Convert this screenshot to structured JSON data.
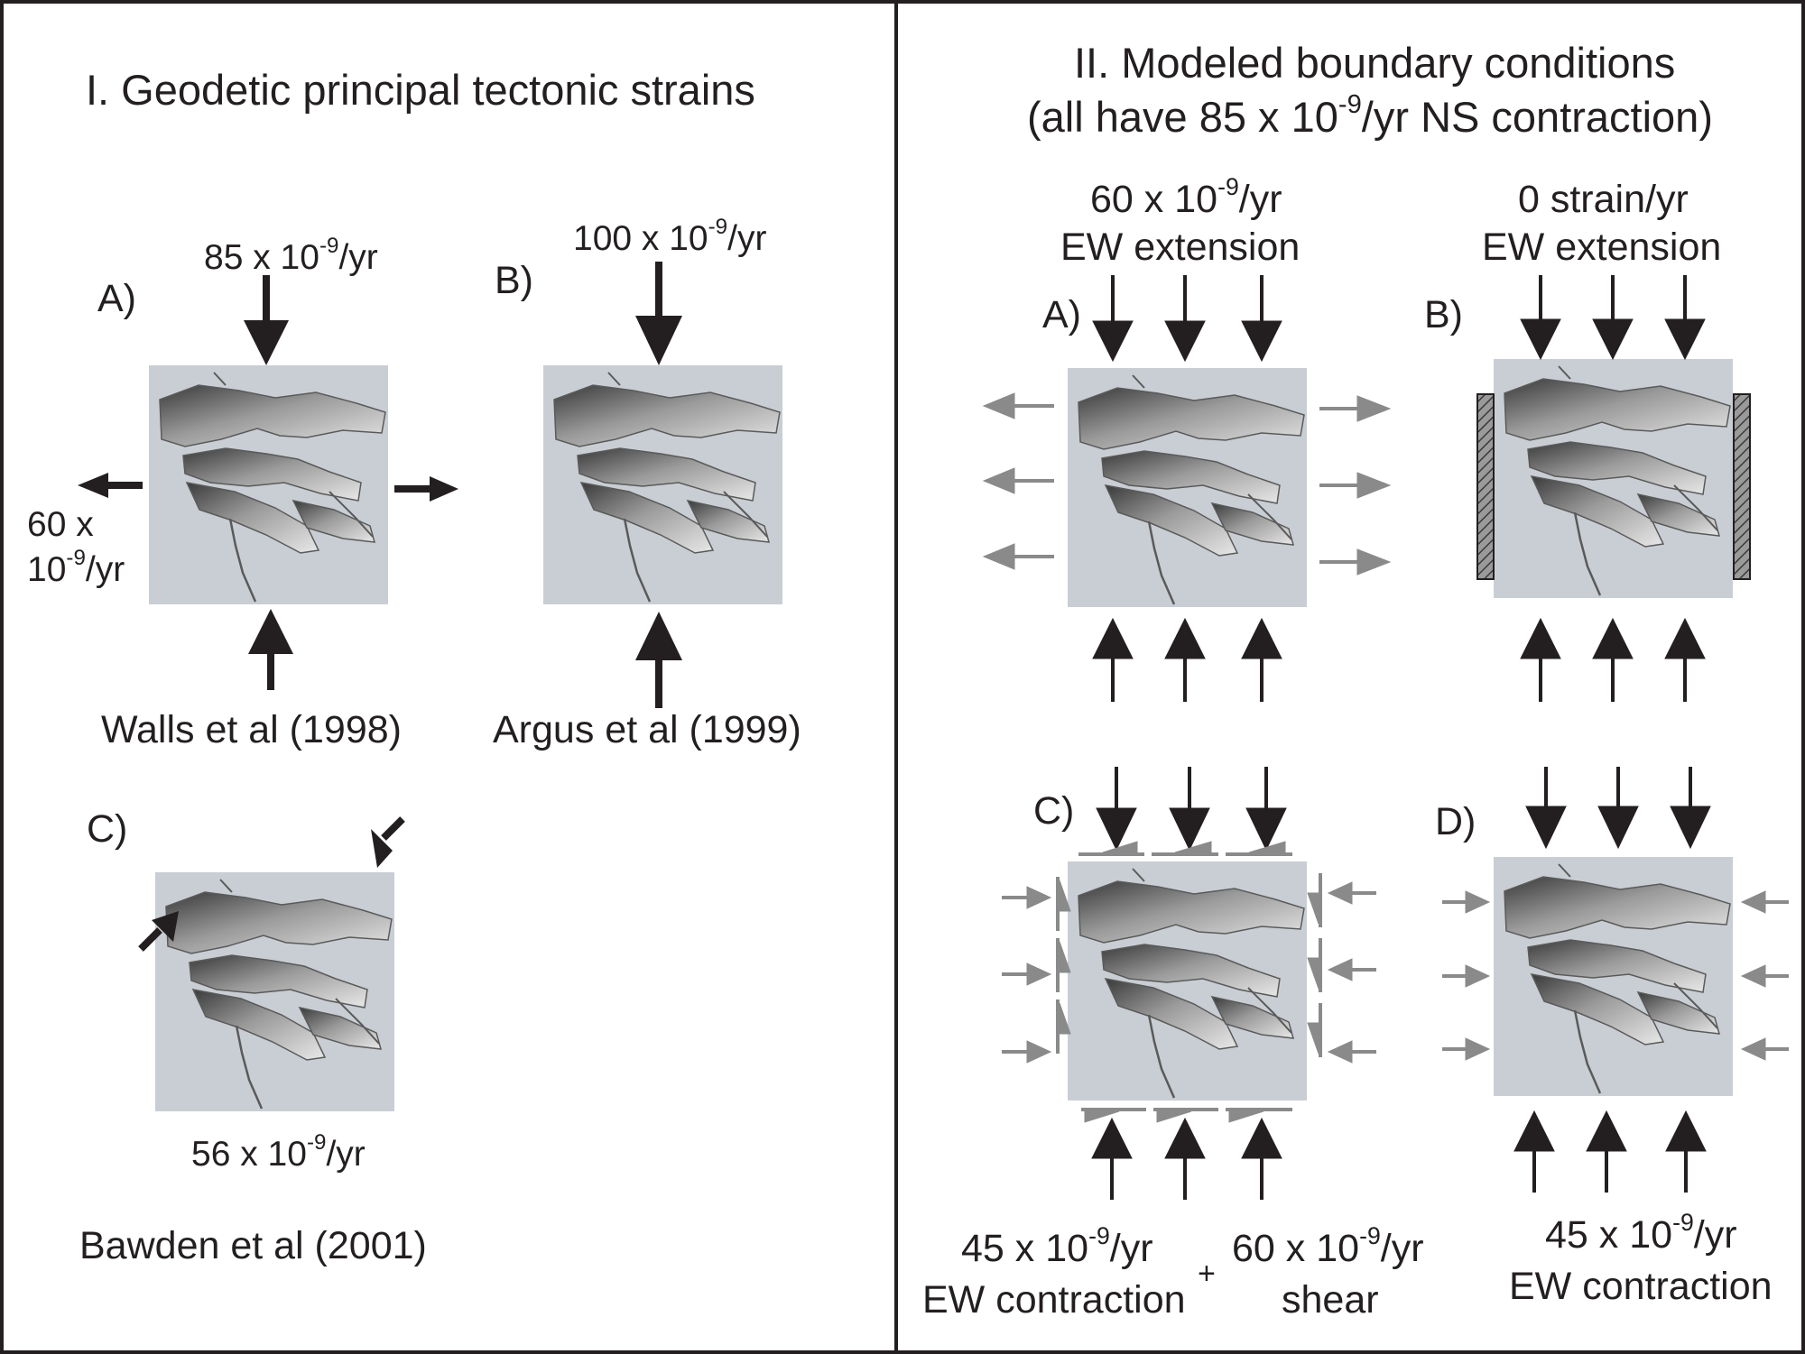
{
  "left_panel": {
    "title": "I. Geodetic principal tectonic strains",
    "a": {
      "letter": "A)",
      "ns_rate_base": "85 x 10",
      "ns_rate_exp": "-9",
      "ns_rate_unit": "/yr",
      "ew_rate_line1": "60 x",
      "ew_rate_base": "10",
      "ew_rate_exp": "-9",
      "ew_rate_unit": "/yr",
      "source": "Walls et al (1998)"
    },
    "b": {
      "letter": "B)",
      "ns_rate_base": "100 x 10",
      "ns_rate_exp": "-9",
      "ns_rate_unit": "/yr",
      "source": "Argus et al (1999)"
    },
    "c": {
      "letter": "C)",
      "rate_base": "56 x 10",
      "rate_exp": "-9",
      "rate_unit": "/yr",
      "source": "Bawden et al (2001)"
    }
  },
  "right_panel": {
    "title": "II. Modeled boundary conditions",
    "subtitle_pre": "(all have 85 x 10",
    "subtitle_exp": "-9",
    "subtitle_post": "/yr NS contraction)",
    "a": {
      "letter": "A)",
      "rate_base": "60 x 10",
      "rate_exp": "-9",
      "rate_unit": "/yr",
      "desc": "EW extension"
    },
    "b": {
      "letter": "B)",
      "rate": "0 strain/yr",
      "desc": "EW extension"
    },
    "c": {
      "letter": "C)",
      "rate1_base": "45 x 10",
      "rate1_exp": "-9",
      "rate1_unit": "/yr",
      "desc1": "EW contraction",
      "plus": "+",
      "rate2_base": "60 x 10",
      "rate2_exp": "-9",
      "rate2_unit": "/yr",
      "desc2": "shear"
    },
    "d": {
      "letter": "D)",
      "rate_base": "45 x 10",
      "rate_exp": "-9",
      "rate_unit": "/yr",
      "desc": "EW contraction"
    }
  },
  "colors": {
    "model_box": "#c9ced4",
    "black_arrow": "#231f20",
    "gray_arrow": "#8a8a8a",
    "border": "#231f20"
  }
}
